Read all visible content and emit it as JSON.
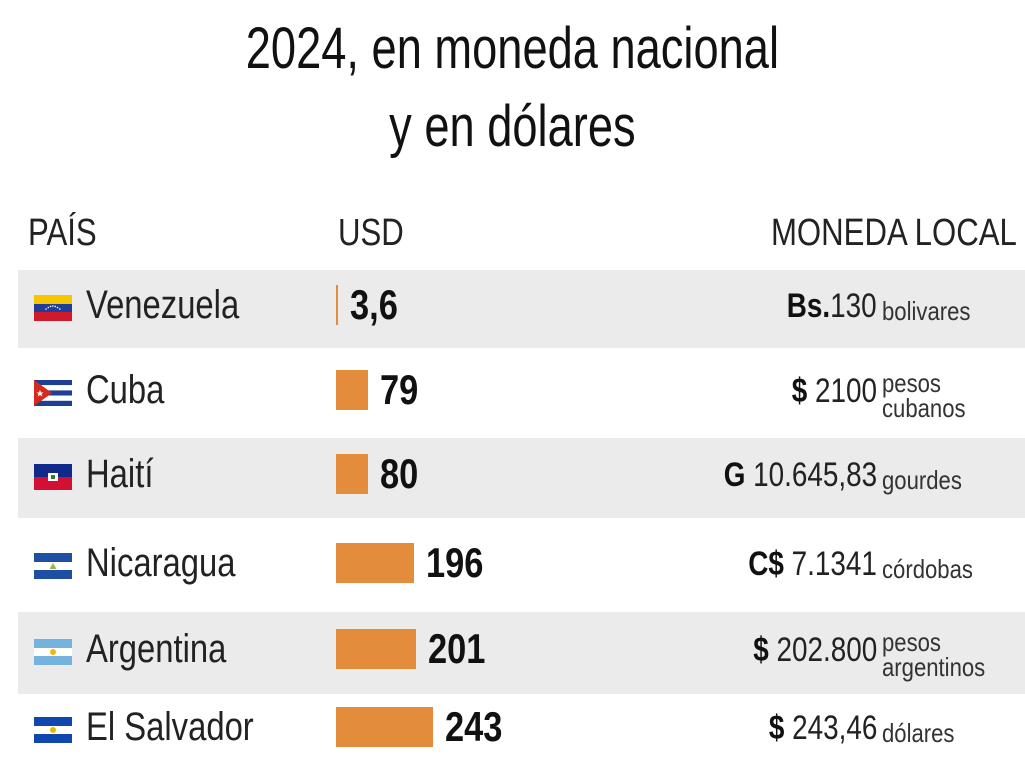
{
  "title_lines": [
    "2024, en moneda nacional",
    "y en dólares"
  ],
  "headers": {
    "country": "PAÍS",
    "usd": "USD",
    "local": "MONEDA LOCAL"
  },
  "colors": {
    "bar": "#e38d3c",
    "row_shade": "#ebebeb"
  },
  "chart_data": {
    "type": "bar",
    "orientation": "horizontal",
    "title": "2024, en moneda nacional y en dólares",
    "categories": [
      "Venezuela",
      "Cuba",
      "Haití",
      "Nicaragua",
      "Argentina",
      "El Salvador"
    ],
    "values": [
      3.6,
      79,
      80,
      196,
      201,
      243
    ],
    "value_labels": [
      "3,6",
      "79",
      "80",
      "196",
      "201",
      "243"
    ],
    "local_currency": [
      {
        "symbol": "Bs.",
        "amount": "130",
        "unit": [
          "bolivares"
        ],
        "flag": "venezuela-flag"
      },
      {
        "symbol": "$",
        "amount": " 2100",
        "unit": [
          "pesos",
          "cubanos"
        ],
        "flag": "cuba-flag"
      },
      {
        "symbol": "G",
        "amount": " 10.645,83",
        "unit": [
          "gourdes"
        ],
        "flag": "haiti-flag"
      },
      {
        "symbol": "C$",
        "amount": " 7.1341",
        "unit": [
          "córdobas"
        ],
        "flag": "nicaragua-flag"
      },
      {
        "symbol": "$",
        "amount": " 202.800",
        "unit": [
          "pesos",
          "argentinos"
        ],
        "flag": "argentina-flag"
      },
      {
        "symbol": "$",
        "amount": " 243,46",
        "unit": [
          "dólares"
        ],
        "flag": "el-salvador-flag"
      }
    ]
  }
}
